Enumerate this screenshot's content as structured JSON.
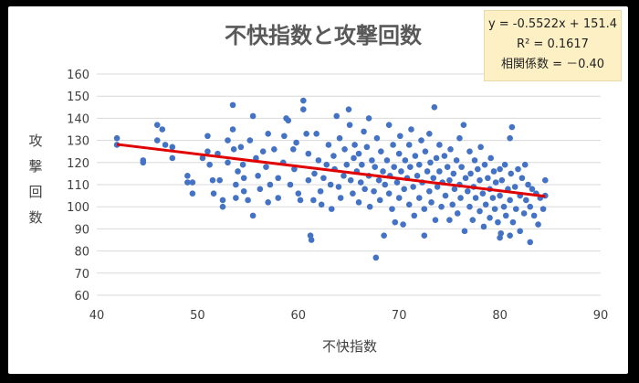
{
  "chart_data": {
    "type": "scatter",
    "title": "不快指数と攻撃回数",
    "xlabel": "不快指数",
    "ylabel": "攻撃回数",
    "xlim": [
      40,
      90
    ],
    "ylim": [
      60,
      160
    ],
    "xticks": [
      "40",
      "50",
      "60",
      "70",
      "80",
      "90"
    ],
    "yticks": [
      "60",
      "70",
      "80",
      "90",
      "100",
      "110",
      "120",
      "130",
      "140",
      "150",
      "160"
    ],
    "grid": "horizontal",
    "marker_color": "#4472c4",
    "trendline": {
      "slope": -0.5522,
      "intercept": 151.4,
      "x_range": [
        42,
        84.5
      ],
      "color": "#e00000"
    },
    "annotation": {
      "equation": "y = -0.5522x + 151.4",
      "r_squared": "R² = 0.1617",
      "correlation": "相関係数 = －0.40"
    },
    "points": [
      [
        42,
        131
      ],
      [
        42,
        128
      ],
      [
        44.6,
        121
      ],
      [
        44.6,
        120
      ],
      [
        46,
        137
      ],
      [
        46.5,
        135
      ],
      [
        46,
        130
      ],
      [
        46.8,
        128
      ],
      [
        47.5,
        127
      ],
      [
        47.5,
        122
      ],
      [
        49,
        114
      ],
      [
        49,
        111
      ],
      [
        49.5,
        111
      ],
      [
        49.5,
        106
      ],
      [
        50.5,
        122
      ],
      [
        51,
        132
      ],
      [
        51,
        125
      ],
      [
        51.2,
        119
      ],
      [
        51.5,
        112
      ],
      [
        51.6,
        106
      ],
      [
        52,
        124
      ],
      [
        52.2,
        112
      ],
      [
        52.5,
        103
      ],
      [
        52.5,
        100
      ],
      [
        53,
        130
      ],
      [
        53,
        120
      ],
      [
        53.5,
        146
      ],
      [
        53.5,
        135
      ],
      [
        53.6,
        126
      ],
      [
        53.8,
        110
      ],
      [
        53.8,
        104
      ],
      [
        54,
        116
      ],
      [
        54.3,
        127
      ],
      [
        54.5,
        119
      ],
      [
        54.6,
        113
      ],
      [
        54.6,
        107
      ],
      [
        55,
        103
      ],
      [
        55.2,
        130
      ],
      [
        55.5,
        141
      ],
      [
        55.5,
        96
      ],
      [
        55.8,
        122
      ],
      [
        56,
        114
      ],
      [
        56.2,
        108
      ],
      [
        56.5,
        125
      ],
      [
        56.8,
        118
      ],
      [
        57,
        133
      ],
      [
        57,
        102
      ],
      [
        57.2,
        110
      ],
      [
        57.6,
        126
      ],
      [
        58,
        113
      ],
      [
        58,
        104
      ],
      [
        58.5,
        120
      ],
      [
        58.6,
        132
      ],
      [
        58.8,
        140
      ],
      [
        59,
        139
      ],
      [
        59.2,
        110
      ],
      [
        59.5,
        126
      ],
      [
        59.6,
        117
      ],
      [
        59.8,
        129
      ],
      [
        60,
        106
      ],
      [
        60.2,
        103
      ],
      [
        60.5,
        148
      ],
      [
        60.5,
        144
      ],
      [
        60.8,
        133
      ],
      [
        61,
        124
      ],
      [
        61,
        112
      ],
      [
        61.2,
        87
      ],
      [
        61.3,
        85
      ],
      [
        61.5,
        103
      ],
      [
        61.6,
        115
      ],
      [
        61.8,
        133
      ],
      [
        62,
        121
      ],
      [
        62.2,
        107
      ],
      [
        62.3,
        101
      ],
      [
        62.5,
        113
      ],
      [
        62.8,
        119
      ],
      [
        63,
        128
      ],
      [
        63.2,
        110
      ],
      [
        63.3,
        99
      ],
      [
        63.5,
        123
      ],
      [
        63.6,
        117
      ],
      [
        63.8,
        141
      ],
      [
        64,
        109
      ],
      [
        64.1,
        131
      ],
      [
        64.2,
        104
      ],
      [
        64.5,
        114
      ],
      [
        64.6,
        126
      ],
      [
        64.8,
        119
      ],
      [
        65,
        144
      ],
      [
        65.1,
        137
      ],
      [
        65.2,
        112
      ],
      [
        65.4,
        106
      ],
      [
        65.5,
        122
      ],
      [
        65.6,
        128
      ],
      [
        65.8,
        116
      ],
      [
        66,
        102
      ],
      [
        66,
        124
      ],
      [
        66.2,
        111
      ],
      [
        66.3,
        119
      ],
      [
        66.5,
        134
      ],
      [
        66.6,
        108
      ],
      [
        66.8,
        127
      ],
      [
        67,
        140
      ],
      [
        67,
        114
      ],
      [
        67.1,
        100
      ],
      [
        67.3,
        121
      ],
      [
        67.5,
        107
      ],
      [
        67.6,
        118
      ],
      [
        67.7,
        77
      ],
      [
        67.8,
        131
      ],
      [
        68,
        112
      ],
      [
        68.1,
        103
      ],
      [
        68.2,
        125
      ],
      [
        68.4,
        116
      ],
      [
        68.5,
        87
      ],
      [
        68.6,
        110
      ],
      [
        68.8,
        121
      ],
      [
        69,
        137
      ],
      [
        69,
        106
      ],
      [
        69.1,
        114
      ],
      [
        69.3,
        99
      ],
      [
        69.4,
        128
      ],
      [
        69.5,
        118
      ],
      [
        69.6,
        93
      ],
      [
        69.8,
        111
      ],
      [
        70,
        124
      ],
      [
        70,
        104
      ],
      [
        70.1,
        132
      ],
      [
        70.2,
        116
      ],
      [
        70.4,
        92
      ],
      [
        70.5,
        108
      ],
      [
        70.6,
        121
      ],
      [
        70.8,
        113
      ],
      [
        71,
        101
      ],
      [
        71,
        128
      ],
      [
        71.1,
        118
      ],
      [
        71.2,
        135
      ],
      [
        71.4,
        109
      ],
      [
        71.5,
        96
      ],
      [
        71.6,
        123
      ],
      [
        71.8,
        114
      ],
      [
        72,
        104
      ],
      [
        72,
        119
      ],
      [
        72.2,
        130
      ],
      [
        72.3,
        111
      ],
      [
        72.5,
        87
      ],
      [
        72.5,
        99
      ],
      [
        72.6,
        125
      ],
      [
        72.8,
        116
      ],
      [
        73,
        107
      ],
      [
        73,
        133
      ],
      [
        73.1,
        120
      ],
      [
        73.2,
        102
      ],
      [
        73.4,
        113
      ],
      [
        73.5,
        145
      ],
      [
        73.6,
        94
      ],
      [
        73.7,
        122
      ],
      [
        73.8,
        109
      ],
      [
        74,
        116
      ],
      [
        74,
        128
      ],
      [
        74.2,
        100
      ],
      [
        74.3,
        111
      ],
      [
        74.5,
        123
      ],
      [
        74.6,
        105
      ],
      [
        74.8,
        118
      ],
      [
        75,
        94
      ],
      [
        75,
        112
      ],
      [
        75.1,
        126
      ],
      [
        75.3,
        101
      ],
      [
        75.4,
        115
      ],
      [
        75.5,
        108
      ],
      [
        75.7,
        121
      ],
      [
        75.8,
        97
      ],
      [
        76,
        110
      ],
      [
        76,
        131
      ],
      [
        76.1,
        104
      ],
      [
        76.2,
        118
      ],
      [
        76.4,
        137
      ],
      [
        76.5,
        89
      ],
      [
        76.6,
        113
      ],
      [
        76.8,
        107
      ],
      [
        77,
        125
      ],
      [
        77,
        100
      ],
      [
        77.1,
        115
      ],
      [
        77.3,
        94
      ],
      [
        77.4,
        109
      ],
      [
        77.5,
        121
      ],
      [
        77.6,
        104
      ],
      [
        77.8,
        117
      ],
      [
        78,
        98
      ],
      [
        78,
        112
      ],
      [
        78.1,
        127
      ],
      [
        78.3,
        106
      ],
      [
        78.4,
        91
      ],
      [
        78.5,
        119
      ],
      [
        78.6,
        101
      ],
      [
        78.8,
        113
      ],
      [
        79,
        108
      ],
      [
        79,
        95
      ],
      [
        79.1,
        122
      ],
      [
        79.3,
        104
      ],
      [
        79.4,
        116
      ],
      [
        79.5,
        99
      ],
      [
        79.6,
        111
      ],
      [
        79.8,
        93
      ],
      [
        80,
        117
      ],
      [
        80,
        105
      ],
      [
        80.1,
        88
      ],
      [
        80.2,
        112
      ],
      [
        80.4,
        100
      ],
      [
        80.5,
        119
      ],
      [
        80.6,
        96
      ],
      [
        80.8,
        108
      ],
      [
        81,
        131
      ],
      [
        81,
        103
      ],
      [
        81.1,
        115
      ],
      [
        81.2,
        136
      ],
      [
        81.3,
        93
      ],
      [
        81.5,
        109
      ],
      [
        81.6,
        99
      ],
      [
        81.8,
        117
      ],
      [
        82,
        105
      ],
      [
        82,
        89
      ],
      [
        82.2,
        113
      ],
      [
        82.4,
        97
      ],
      [
        82.5,
        119
      ],
      [
        82.6,
        103
      ],
      [
        82.8,
        110
      ],
      [
        83,
        84
      ],
      [
        83,
        100
      ],
      [
        83.2,
        108
      ],
      [
        83.4,
        96
      ],
      [
        83.6,
        106
      ],
      [
        83.8,
        92
      ],
      [
        84,
        104
      ],
      [
        84.3,
        99
      ],
      [
        84.5,
        112
      ],
      [
        84.5,
        105
      ],
      [
        81,
        87
      ],
      [
        80,
        86
      ]
    ]
  }
}
